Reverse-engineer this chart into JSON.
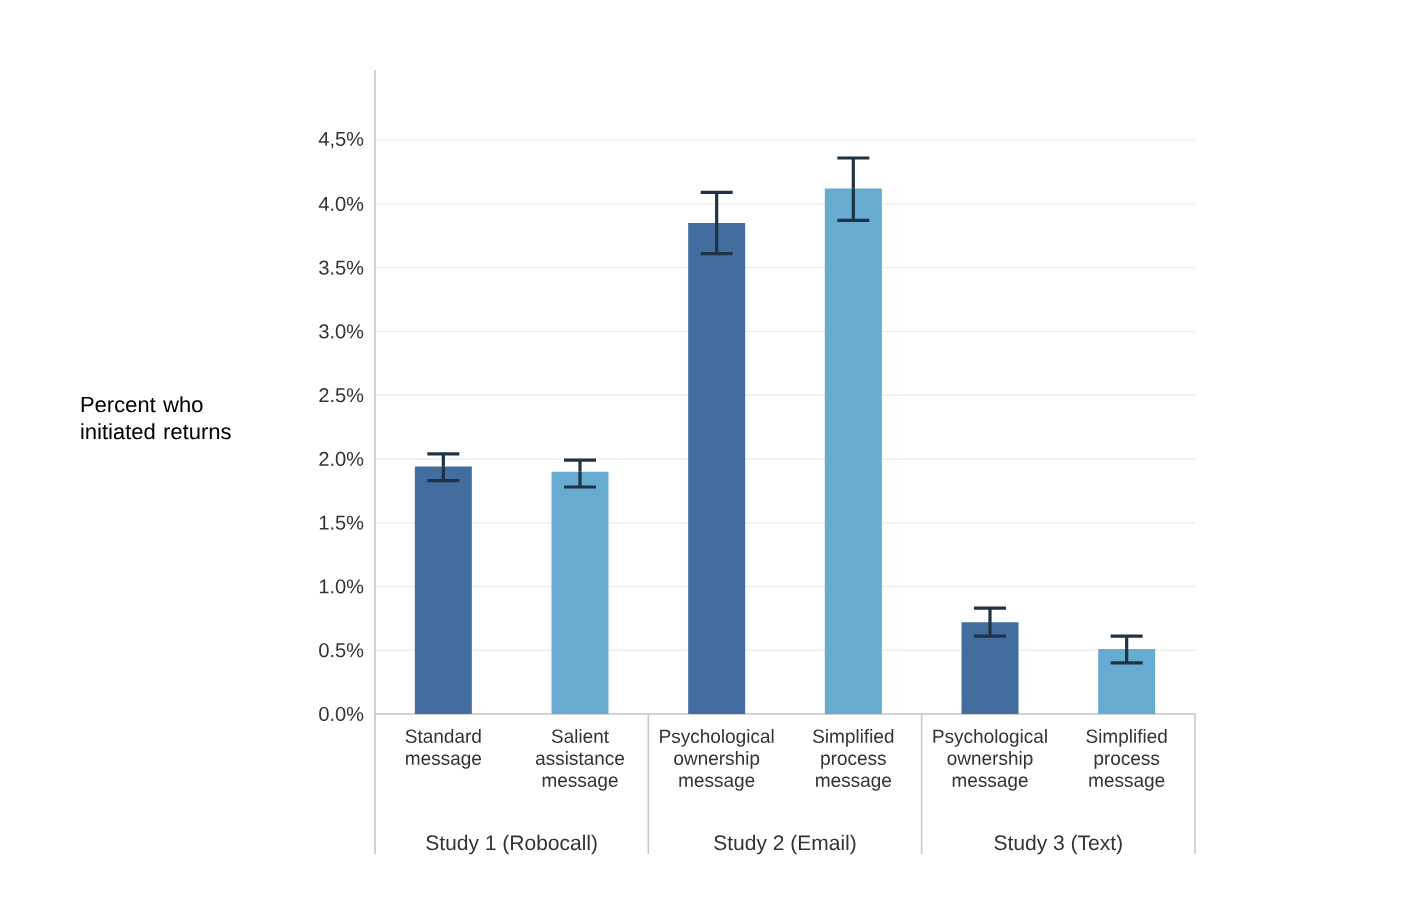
{
  "chart_data": {
    "type": "bar",
    "ylabel": "Percent who initiated returns",
    "categories": [
      "Standard message",
      "Salient assistance message",
      "Psychological ownership message",
      "Simplified process message",
      "Psychological ownership message",
      "Simplified process message"
    ],
    "values": [
      1.94,
      1.9,
      3.85,
      4.12,
      0.72,
      0.51
    ],
    "colors": [
      "#436d9e",
      "#67acd0",
      "#436d9e",
      "#67acd0",
      "#436d9e",
      "#67acd0"
    ],
    "errors": [
      [
        1.83,
        2.04
      ],
      [
        1.78,
        1.99
      ],
      [
        3.61,
        4.09
      ],
      [
        3.87,
        4.36
      ],
      [
        0.61,
        0.83
      ],
      [
        0.4,
        0.61
      ]
    ],
    "ylim": [
      0,
      5.05
    ],
    "yticks": [
      {
        "value": 0,
        "label": "0.0%"
      },
      {
        "value": 0.5,
        "label": "0.5%"
      },
      {
        "value": 1.0,
        "label": "1.0%"
      },
      {
        "value": 1.5,
        "label": "1.5%"
      },
      {
        "value": 2.0,
        "label": "2.0%"
      },
      {
        "value": 2.5,
        "label": "2.5%"
      },
      {
        "value": 3.0,
        "label": "3.0%"
      },
      {
        "value": 3.5,
        "label": "3.5%"
      },
      {
        "value": 4.0,
        "label": "4.0%"
      },
      {
        "value": 4.5,
        "label": "4,5%"
      }
    ],
    "grid": "y",
    "annotations": [
      "Study 1 (Robocall)",
      "Study 2 (Email)",
      "Study 3 (Text)"
    ]
  }
}
